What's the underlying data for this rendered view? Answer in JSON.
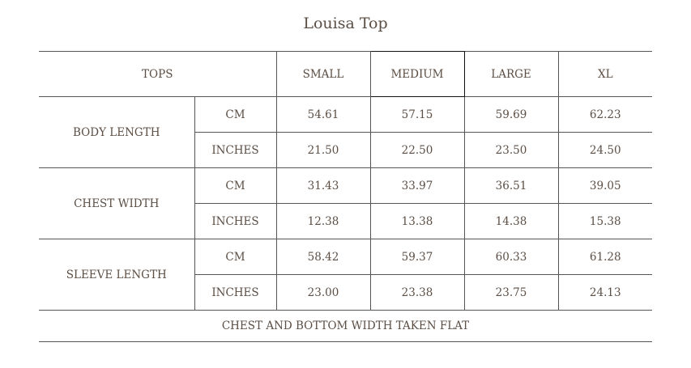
{
  "title": "Louisa Top",
  "header": {
    "category": "TOPS",
    "sizes": [
      "SMALL",
      "MEDIUM",
      "LARGE",
      "XL"
    ]
  },
  "rows": [
    {
      "measure": "BODY LENGTH",
      "units": [
        {
          "unit": "CM",
          "values": [
            "54.61",
            "57.15",
            "59.69",
            "62.23"
          ]
        },
        {
          "unit": "INCHES",
          "values": [
            "21.50",
            "22.50",
            "23.50",
            "24.50"
          ]
        }
      ]
    },
    {
      "measure": "CHEST WIDTH",
      "units": [
        {
          "unit": "CM",
          "values": [
            "31.43",
            "33.97",
            "36.51",
            "39.05"
          ]
        },
        {
          "unit": "INCHES",
          "values": [
            "12.38",
            "13.38",
            "14.38",
            "15.38"
          ]
        }
      ]
    },
    {
      "measure": "SLEEVE LENGTH",
      "units": [
        {
          "unit": "CM",
          "values": [
            "58.42",
            "59.37",
            "60.33",
            "61.28"
          ]
        },
        {
          "unit": "INCHES",
          "values": [
            "23.00",
            "23.38",
            "23.75",
            "24.13"
          ]
        }
      ]
    }
  ],
  "footnote": "CHEST AND BOTTOM WIDTH TAKEN FLAT"
}
